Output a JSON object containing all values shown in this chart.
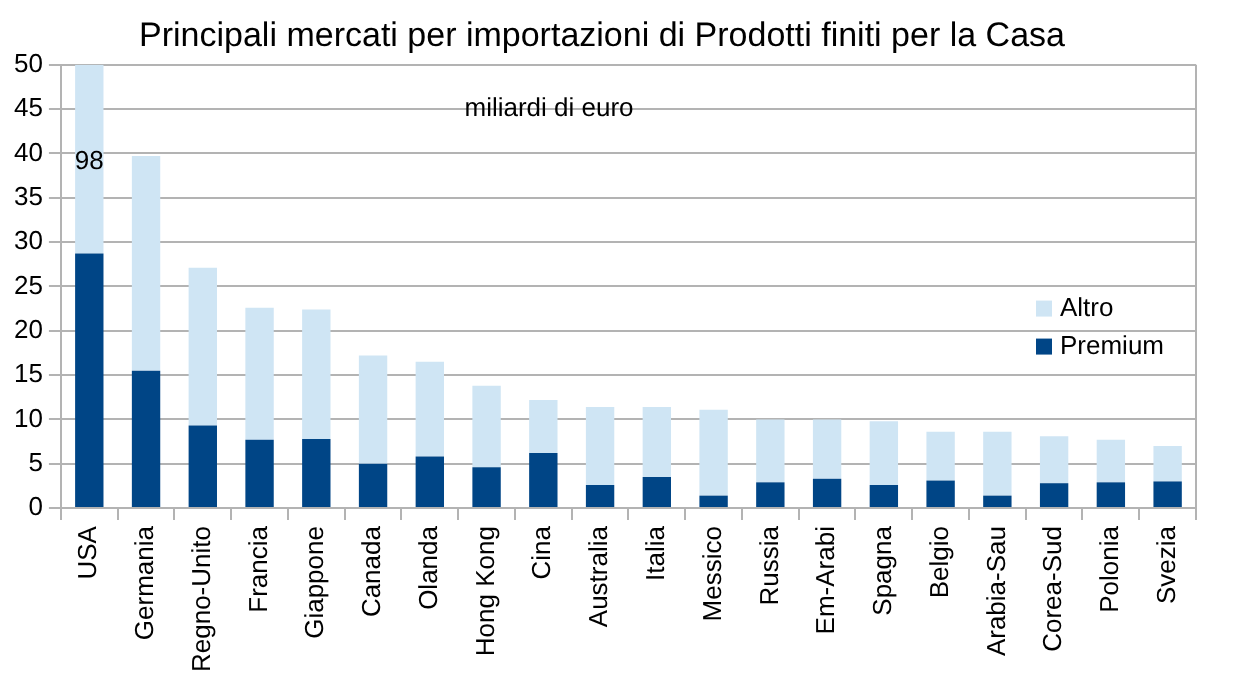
{
  "chart_data": {
    "type": "bar",
    "title": "Principali mercati per importazioni di Prodotti finiti per la Casa",
    "annotations": [
      "miliardi di euro",
      "98"
    ],
    "categories": [
      "USA",
      "Germania",
      "Regno-Unito",
      "Francia",
      "Giappone",
      "Canada",
      "Olanda",
      "Hong Kong",
      "Cina",
      "Australia",
      "Italia",
      "Messico",
      "Russia",
      "Em-Arabi",
      "Spagna",
      "Belgio",
      "Arabia-Sau",
      "Corea-Sud",
      "Polonia",
      "Svezia"
    ],
    "series": [
      {
        "name": "Premium",
        "color": "#004586",
        "values": [
          28.7,
          15.5,
          9.3,
          7.7,
          7.8,
          5.0,
          5.8,
          4.6,
          6.2,
          2.6,
          3.5,
          1.4,
          2.9,
          3.3,
          2.6,
          3.1,
          1.4,
          2.8,
          2.9,
          3.0
        ]
      },
      {
        "name": "Altro",
        "color": "#cfe5f4",
        "values": [
          21.3,
          24.2,
          17.8,
          14.9,
          14.6,
          12.2,
          10.7,
          9.2,
          6.0,
          8.8,
          7.9,
          9.7,
          7.1,
          6.7,
          7.2,
          5.5,
          7.2,
          5.3,
          4.8,
          4.0
        ]
      }
    ],
    "stacked": true,
    "ylim": [
      0,
      50
    ],
    "yticks": [
      0,
      5,
      10,
      15,
      20,
      25,
      30,
      35,
      40,
      45,
      50
    ],
    "grid": "y",
    "legend": "right"
  }
}
